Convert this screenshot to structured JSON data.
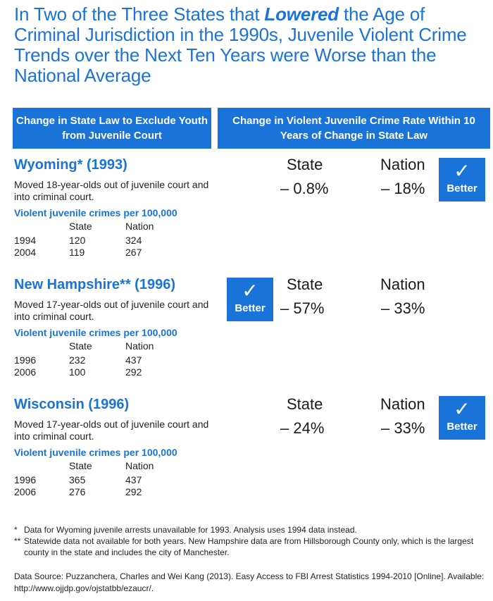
{
  "title": {
    "part1": "In Two of the Three States that ",
    "emphasis": "Lowered",
    "part2": " the Age of Criminal Jurisdiction in the 1990s, Juvenile Violent Crime Trends over the Next Ten Years were Worse than the National Average"
  },
  "headers": {
    "left": "Change in State Law to Exclude Youth from Juvenile Court",
    "right": "Change in Violent Juvenile Crime Rate Within 10 Years of Change in State Law"
  },
  "column_labels": {
    "state": "State",
    "nation": "Nation"
  },
  "subhead_label": "Violent juvenile crimes per 100,000",
  "badge": {
    "check": "✓",
    "label": "Better"
  },
  "states": [
    {
      "name": "Wyoming* (1993)",
      "description": "Moved 18-year-olds out of juvenile court and into criminal court.",
      "table_headers": [
        "",
        "State",
        "Nation"
      ],
      "rows": [
        [
          "1994",
          "120",
          "324"
        ],
        [
          "2004",
          "119",
          "267"
        ]
      ],
      "state_change": "– 0.8%",
      "nation_change": "– 18%",
      "better": "nation"
    },
    {
      "name": "New Hampshire** (1996)",
      "description": "Moved 17-year-olds out of juvenile court and into criminal court.",
      "table_headers": [
        "",
        "State",
        "Nation"
      ],
      "rows": [
        [
          "1996",
          "232",
          "437"
        ],
        [
          "2006",
          "100",
          "292"
        ]
      ],
      "state_change": "– 57%",
      "nation_change": "– 33%",
      "better": "state"
    },
    {
      "name": "Wisconsin (1996)",
      "description": "Moved 17-year-olds out of juvenile court and into criminal court.",
      "table_headers": [
        "",
        "State",
        "Nation"
      ],
      "rows": [
        [
          "1996",
          "365",
          "437"
        ],
        [
          "2006",
          "276",
          "292"
        ]
      ],
      "state_change": "– 24%",
      "nation_change": "– 33%",
      "better": "nation"
    }
  ],
  "footnotes": [
    {
      "mark": "*",
      "text": "Data for Wyoming juvenile arrests unavailable for 1993. Analysis uses 1994 data instead."
    },
    {
      "mark": "**",
      "text": "Statewide data not available for both years. New Hampshire data are from Hillsborough County only, which is the largest county in the state and includes the city of Manchester."
    }
  ],
  "source": "Data Source: Puzzanchera, Charles and Wei Kang (2013). Easy Access to FBI Arrest Statistics 1994-2010 [Online]. Available: http://www.ojjdp.gov/ojstatbb/ezaucr/.",
  "colors": {
    "accent": "#1a73d9",
    "text": "#1a1a1a"
  }
}
